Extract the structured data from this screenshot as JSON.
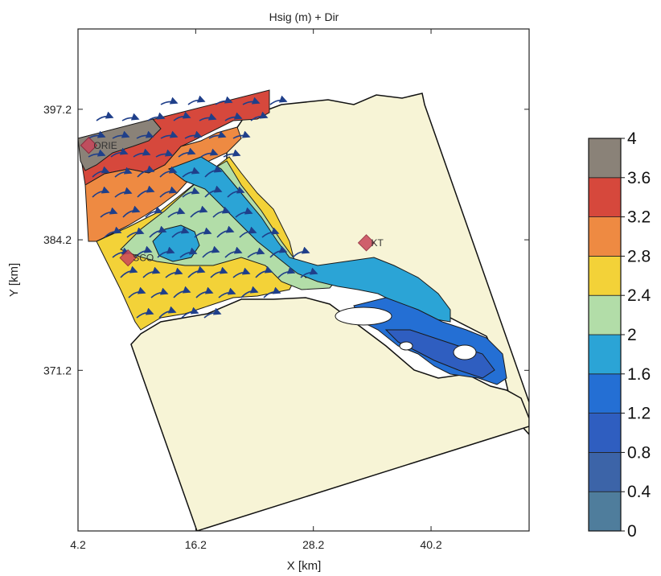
{
  "chart_data": {
    "type": "heatmap",
    "title": "Hsig (m) + Dir",
    "xlabel": "X [km]",
    "ylabel": "Y [km]",
    "xlim": [
      4.2,
      50.2
    ],
    "ylim": [
      355.2,
      405.2
    ],
    "x_ticks": [
      4.2,
      16.2,
      28.2,
      40.2
    ],
    "x_tick_labels": [
      "4.2",
      "16.2",
      "28.2",
      "40.2"
    ],
    "y_ticks": [
      397.2,
      384.2,
      371.2
    ],
    "y_tick_labels": [
      "397.2",
      "384.2",
      "371.2"
    ],
    "colorbar": {
      "levels": [
        0,
        0.4,
        0.8,
        1.2,
        1.6,
        2,
        2.4,
        2.8,
        3.2,
        3.6,
        4
      ],
      "labels": [
        "0",
        "0.4",
        "0.8",
        "1.2",
        "1.6",
        "2",
        "2.4",
        "2.8",
        "3.2",
        "3.6",
        "4"
      ],
      "colors": [
        "#4f7d9c",
        "#3c64a8",
        "#2f5ec0",
        "#246fd4",
        "#2ba4d6",
        "#b2dda8",
        "#f3d238",
        "#ee8a42",
        "#d6483c",
        "#8a8278"
      ]
    },
    "stations": [
      {
        "name": "ORIE",
        "x": 5.3,
        "y": 393.6
      },
      {
        "name": "SCO",
        "x": 9.3,
        "y": 382.4
      },
      {
        "name": "KT",
        "x": 33.6,
        "y": 383.9
      }
    ],
    "land_color": "#f7f4d6"
  }
}
